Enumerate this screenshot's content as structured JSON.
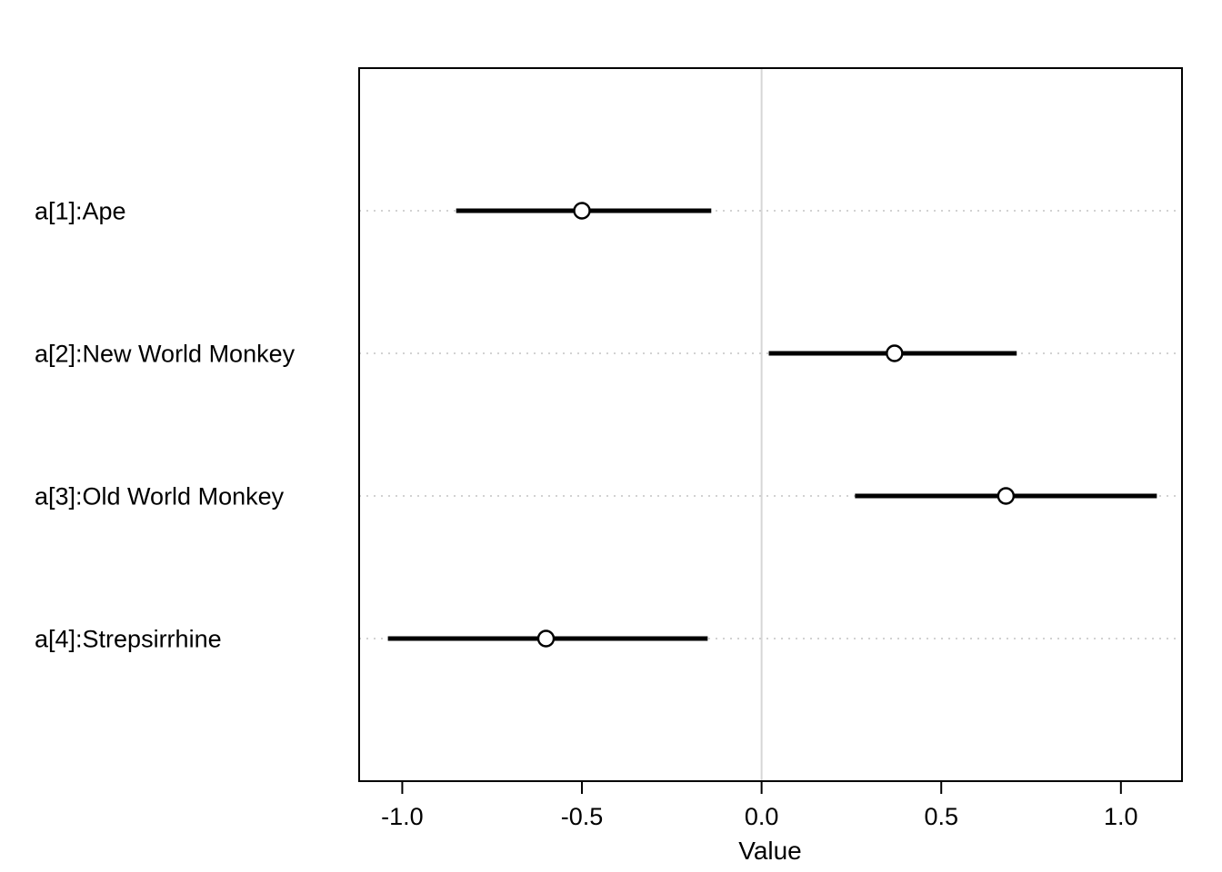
{
  "chart_data": {
    "type": "interval",
    "title": "",
    "xlabel": "Value",
    "xlim": [
      -1.12,
      1.17
    ],
    "xticks": [
      -1.0,
      -0.5,
      0.0,
      0.5,
      1.0
    ],
    "xtick_labels": [
      "-1.0",
      "-0.5",
      "0.0",
      "0.5",
      "1.0"
    ],
    "reference_line_x": 0,
    "grid": "dashed-horizontal-per-row",
    "legend": "none",
    "rows": [
      {
        "label": "a[1]:Ape",
        "point": -0.5,
        "lower": -0.85,
        "upper": -0.14
      },
      {
        "label": "a[2]:New World Monkey",
        "point": 0.37,
        "lower": 0.02,
        "upper": 0.71
      },
      {
        "label": "a[3]:Old World Monkey",
        "point": 0.68,
        "lower": 0.26,
        "upper": 1.1
      },
      {
        "label": "a[4]:Strepsirrhine",
        "point": -0.6,
        "lower": -1.04,
        "upper": -0.15
      }
    ],
    "colors": {
      "interval": "#000000",
      "point_fill": "#ffffff",
      "point_stroke": "#000000",
      "gridline": "#c3c3c3",
      "reference_line": "#d6d6d6",
      "box_border": "#000000",
      "text": "#000000",
      "background": "#ffffff"
    }
  }
}
